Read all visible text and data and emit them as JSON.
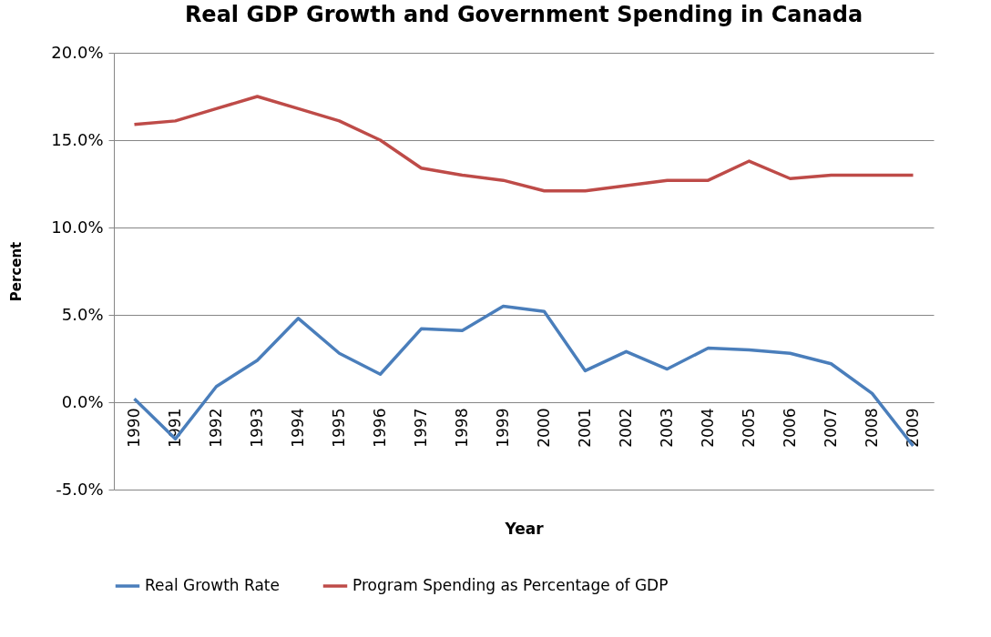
{
  "chart_data": {
    "type": "line",
    "title": "Real GDP Growth and Government Spending in Canada",
    "xlabel": "Year",
    "ylabel": "Percent",
    "categories": [
      "1990",
      "1991",
      "1992",
      "1993",
      "1994",
      "1995",
      "1996",
      "1997",
      "1998",
      "1999",
      "2000",
      "2001",
      "2002",
      "2003",
      "2004",
      "2005",
      "2006",
      "2007",
      "2008",
      "2009"
    ],
    "series": [
      {
        "name": "Real Growth Rate",
        "color": "#4a7ebb",
        "values": [
          0.2,
          -2.1,
          0.9,
          2.4,
          4.8,
          2.8,
          1.6,
          4.2,
          4.1,
          5.5,
          5.2,
          1.8,
          2.9,
          1.9,
          3.1,
          3.0,
          2.8,
          2.2,
          0.5,
          -2.5
        ]
      },
      {
        "name": "Program Spending as Percentage of GDP",
        "color": "#be4b48",
        "values": [
          15.9,
          16.1,
          16.8,
          17.5,
          16.8,
          16.1,
          15.0,
          13.4,
          13.0,
          12.7,
          12.1,
          12.1,
          12.4,
          12.7,
          12.7,
          13.8,
          12.8,
          13.0,
          13.0,
          13.0
        ]
      }
    ],
    "ylim": [
      -5,
      20
    ],
    "yticks": [
      {
        "value": -5,
        "label": "-5.0%"
      },
      {
        "value": 0,
        "label": "0.0%"
      },
      {
        "value": 5,
        "label": "5.0%"
      },
      {
        "value": 10,
        "label": "10.0%"
      },
      {
        "value": 15,
        "label": "15.0%"
      },
      {
        "value": 20,
        "label": "20.0%"
      }
    ],
    "grid": "y",
    "legend": "bottom",
    "marker": "none",
    "line_style": "solid"
  }
}
